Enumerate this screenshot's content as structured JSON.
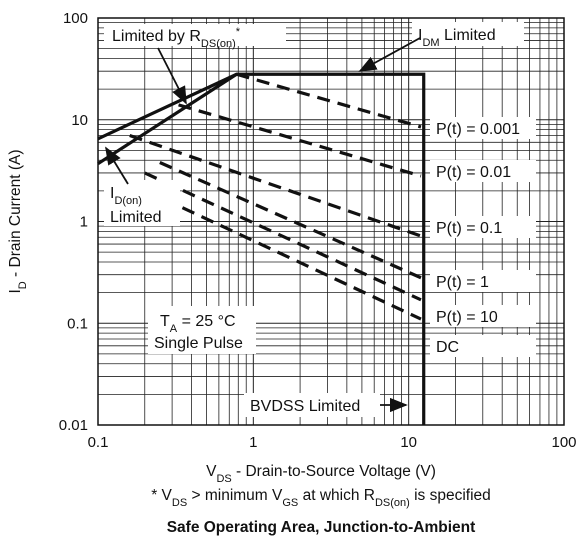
{
  "chart_data": {
    "type": "line",
    "title": "Safe Operating Area, Junction-to-Ambient",
    "xlabel_main": "V",
    "xlabel_sub": "DS",
    "xlabel_rest": " - Drain-to-Source Voltage (V)",
    "ylabel_main": "I",
    "ylabel_sub": "D",
    "ylabel_rest": " - Drain Current (A)",
    "x_scale": "log",
    "y_scale": "log",
    "xlim": [
      0.1,
      100
    ],
    "ylim": [
      0.01,
      100
    ],
    "x_ticks": [
      "0.1",
      "1",
      "10",
      "100"
    ],
    "y_ticks": [
      "0.01",
      "0.1",
      "1",
      "10",
      "100"
    ],
    "grid": true,
    "footnote": {
      "star": "* V",
      "sub1": "DS",
      "mid": " > minimum V",
      "sub2": "GS",
      "mid2": " at which R",
      "sub3": "DS(on)",
      "end": " is specified"
    },
    "series": [
      {
        "name": "Limited by RDS(on)",
        "style": "solid",
        "x": [
          0.1,
          0.78
        ],
        "y": [
          3.7,
          28
        ]
      },
      {
        "name": "ID(on) Limited",
        "style": "solid",
        "x": [
          0.1,
          0.78,
          12.5,
          12.5
        ],
        "y": [
          6.5,
          28,
          28,
          0.01
        ]
      },
      {
        "name": "P(t) = 0.001",
        "style": "dashed",
        "x": [
          0.78,
          12
        ],
        "y": [
          28,
          8.5
        ]
      },
      {
        "name": "P(t) = 0.01",
        "style": "dashed",
        "x": [
          0.33,
          12
        ],
        "y": [
          14,
          2.8
        ]
      },
      {
        "name": "P(t) = 0.1",
        "style": "dashed",
        "x": [
          0.16,
          12
        ],
        "y": [
          7.0,
          0.72
        ]
      },
      {
        "name": "P(t) = 1",
        "style": "dashed",
        "x": [
          0.25,
          12
        ],
        "y": [
          3.8,
          0.28
        ]
      },
      {
        "name": "P(t) = 10",
        "style": "dashed",
        "x": [
          0.2,
          12
        ],
        "y": [
          3.0,
          0.17
        ]
      },
      {
        "name": "DC",
        "style": "dashed",
        "x": [
          0.15,
          12
        ],
        "y": [
          2.5,
          0.11
        ]
      }
    ],
    "annotations": {
      "rds": {
        "main": "Limited by R",
        "sub": "DS(on)",
        "sup": "*"
      },
      "idm": {
        "main": "I",
        "sub": "DM",
        "rest": " Limited"
      },
      "idon_line1_main": "I",
      "idon_line1_sub": "D(on)",
      "idon_line2": "Limited",
      "ta_main": "T",
      "ta_sub": "A",
      "ta_rest": " = 25 °C",
      "single_pulse": "Single Pulse",
      "bvdss": "BVDSS Limited",
      "pt_labels": [
        "P(t) = 0.001",
        "P(t) = 0.01",
        "P(t) = 0.1",
        "P(t) = 1",
        "P(t) = 10",
        "DC"
      ]
    }
  }
}
